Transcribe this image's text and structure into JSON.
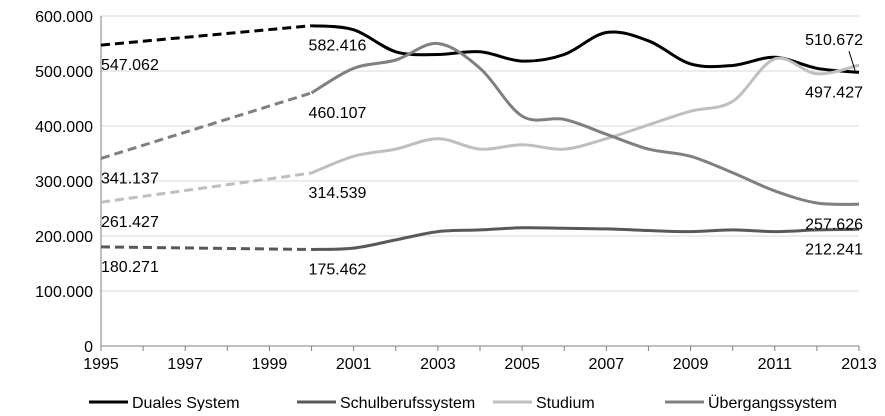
{
  "chart_data": {
    "type": "line",
    "title": "",
    "xlabel": "",
    "ylabel": "",
    "xlim": [
      1995,
      2013
    ],
    "ylim": [
      0,
      600000
    ],
    "x_ticks": [
      "1995",
      "1997",
      "1999",
      "2001",
      "2003",
      "2005",
      "2007",
      "2009",
      "2011",
      "2013"
    ],
    "y_ticks": [
      "0",
      "100.000",
      "200.000",
      "300.000",
      "400.000",
      "500.000",
      "600.000"
    ],
    "grid": "horizontal",
    "legend_position": "bottom",
    "series": [
      {
        "name": "Duales System",
        "color": "#000000",
        "dashed": {
          "x": [
            1995,
            2000
          ],
          "y": [
            547062,
            582416
          ]
        },
        "solid": {
          "x": [
            2000,
            2001,
            2002,
            2003,
            2004,
            2005,
            2006,
            2007,
            2008,
            2009,
            2010,
            2011,
            2012,
            2013
          ],
          "y": [
            582416,
            575000,
            535000,
            530000,
            535000,
            518000,
            530000,
            570000,
            555000,
            513000,
            510000,
            525000,
            505000,
            497427
          ]
        }
      },
      {
        "name": "Schulberufssystem",
        "color": "#595959",
        "dashed": {
          "x": [
            1995,
            2000
          ],
          "y": [
            180271,
            175462
          ]
        },
        "solid": {
          "x": [
            2000,
            2001,
            2002,
            2003,
            2004,
            2005,
            2006,
            2007,
            2008,
            2009,
            2010,
            2011,
            2012,
            2013
          ],
          "y": [
            175462,
            178000,
            193000,
            208000,
            211000,
            215000,
            214000,
            213000,
            210000,
            208000,
            211000,
            208000,
            211000,
            212241
          ]
        }
      },
      {
        "name": "Studium",
        "color": "#bfbfbf",
        "dashed": {
          "x": [
            1995,
            2000
          ],
          "y": [
            261427,
            314539
          ]
        },
        "solid": {
          "x": [
            2000,
            2001,
            2002,
            2003,
            2004,
            2005,
            2006,
            2007,
            2008,
            2009,
            2010,
            2011,
            2012,
            2013
          ],
          "y": [
            314539,
            345000,
            358000,
            377000,
            358000,
            366000,
            358000,
            377000,
            402000,
            427000,
            445000,
            522000,
            495000,
            510672
          ]
        }
      },
      {
        "name": "Übergangssystem",
        "color": "#808080",
        "dashed": {
          "x": [
            1995,
            2000
          ],
          "y": [
            341137,
            460107
          ]
        },
        "solid": {
          "x": [
            2000,
            2001,
            2002,
            2003,
            2004,
            2005,
            2006,
            2007,
            2008,
            2009,
            2010,
            2011,
            2012,
            2013
          ],
          "y": [
            460107,
            505000,
            520000,
            550000,
            505000,
            418000,
            412000,
            385000,
            358000,
            345000,
            315000,
            282000,
            260000,
            257626
          ]
        }
      }
    ],
    "data_labels": [
      {
        "text": "547.062",
        "x": 1995,
        "y": 547062,
        "pos": "below"
      },
      {
        "text": "582.416",
        "x": 2000,
        "y": 582416,
        "pos": "below"
      },
      {
        "text": "341.137",
        "x": 1995,
        "y": 341137,
        "pos": "below"
      },
      {
        "text": "460.107",
        "x": 2000,
        "y": 460107,
        "pos": "below"
      },
      {
        "text": "261.427",
        "x": 1995,
        "y": 261427,
        "pos": "below"
      },
      {
        "text": "314.539",
        "x": 2000,
        "y": 314539,
        "pos": "below"
      },
      {
        "text": "180.271",
        "x": 1995,
        "y": 180271,
        "pos": "below"
      },
      {
        "text": "175.462",
        "x": 2000,
        "y": 175462,
        "pos": "below"
      },
      {
        "text": "510.672",
        "x": 2013,
        "y": 510672,
        "pos": "above-end"
      },
      {
        "text": "497.427",
        "x": 2013,
        "y": 497427,
        "pos": "below-end"
      },
      {
        "text": "257.626",
        "x": 2013,
        "y": 257626,
        "pos": "below-end"
      },
      {
        "text": "212.241",
        "x": 2013,
        "y": 212241,
        "pos": "below-end"
      }
    ]
  }
}
